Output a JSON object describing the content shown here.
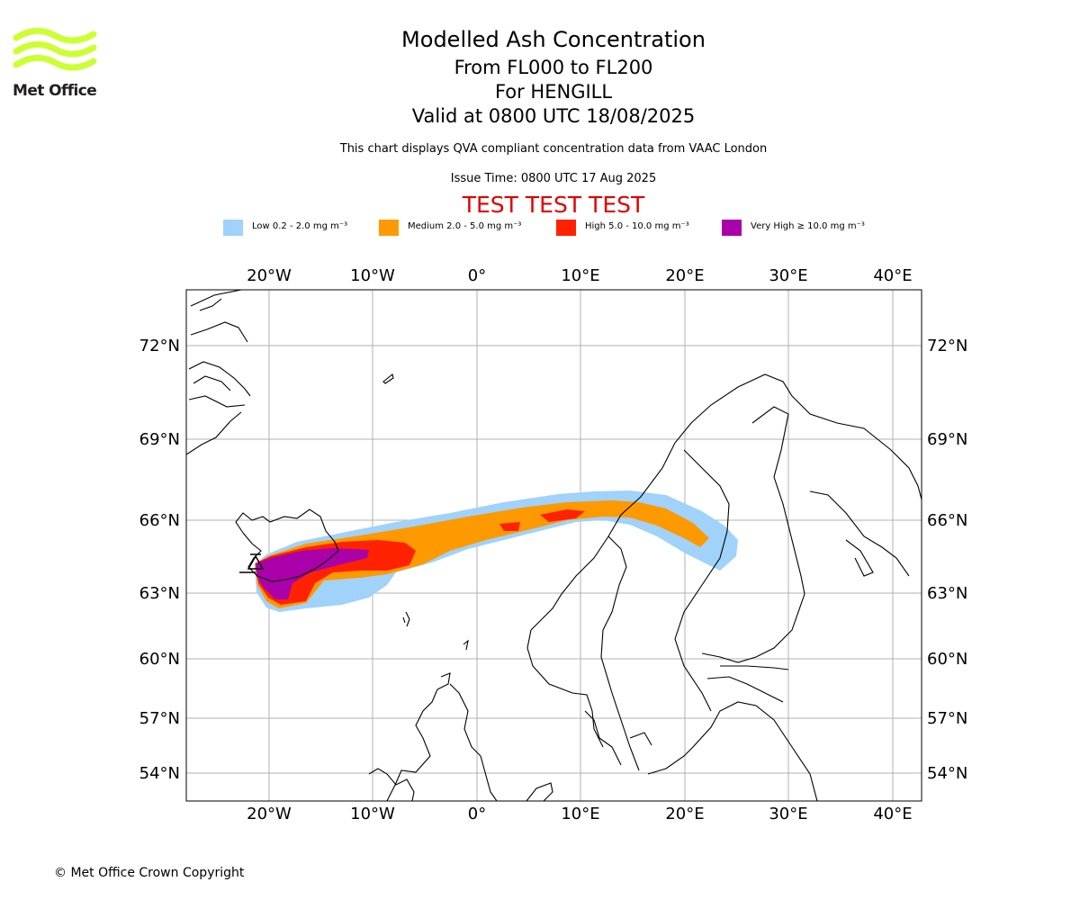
{
  "logo": {
    "text": "Met Office",
    "color": "#ccff33"
  },
  "titles": {
    "main": "Modelled Ash Concentration",
    "levels": "From FL000 to FL200",
    "volcano": "For HENGILL",
    "valid": "Valid at 0800 UTC 18/08/2025"
  },
  "subtitle": "This chart displays QVA compliant concentration data from VAAC London",
  "issue_time": "Issue Time: 0800 UTC 17 Aug 2025",
  "test_banner": "TEST TEST TEST",
  "legend": [
    {
      "label": "Low 0.2 - 2.0 mg m⁻³",
      "color": "#a0d2fa"
    },
    {
      "label": "Medium 2.0 - 5.0 mg m⁻³",
      "color": "#ff9900"
    },
    {
      "label": "High 5.0 - 10.0 mg m⁻³",
      "color": "#ff2200"
    },
    {
      "label": "Very High ≥ 10.0 mg m⁻³",
      "color": "#aa00aa"
    }
  ],
  "map": {
    "lon_labels": [
      "20°W",
      "10°W",
      "0°",
      "10°E",
      "20°E",
      "30°E",
      "40°E"
    ],
    "lat_labels": [
      "72°N",
      "69°N",
      "66°N",
      "63°N",
      "60°N",
      "57°N",
      "54°N"
    ],
    "grid_color": "#b0b0b0"
  },
  "copyright": "© Met Office Crown Copyright"
}
